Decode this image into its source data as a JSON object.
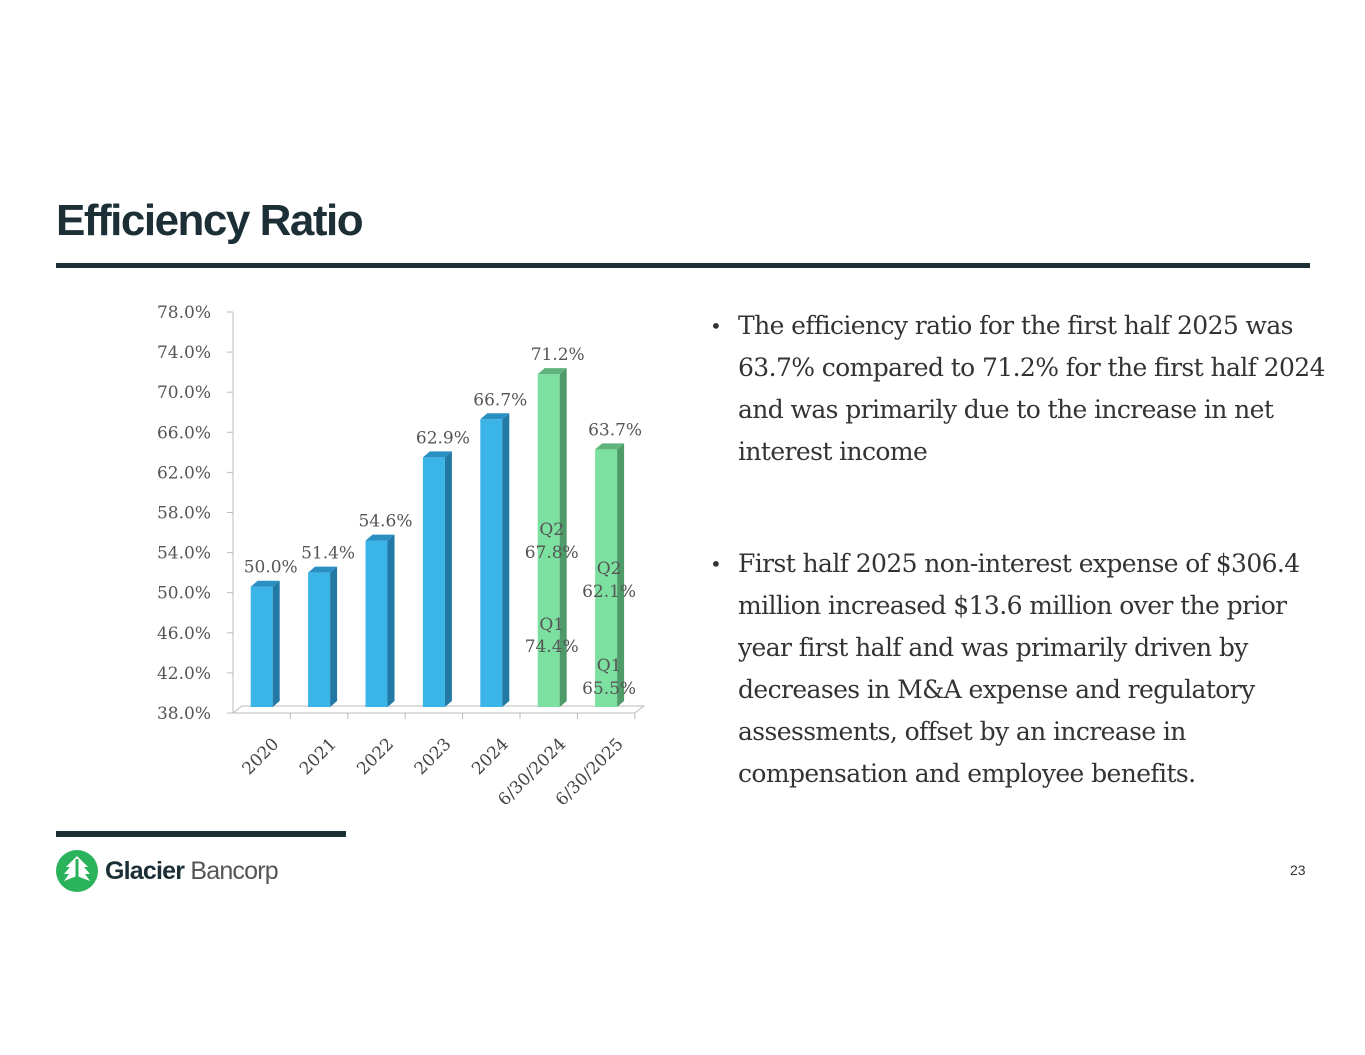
{
  "slide": {
    "title": "Efficiency Ratio",
    "page_number": "23",
    "bullets": [
      "The efficiency ratio for the first half 2025 was 63.7% compared to 71.2% for the first half 2024 and was primarily due to the increase in net interest income",
      "First half 2025 non-interest expense of $306.4 million increased $13.6 million over the prior year first half and was primarily driven by decreases in M&A expense and regulatory assessments, offset by an increase in compensation and employee benefits."
    ],
    "logo": {
      "brand_bold": "Glacier",
      "brand_light": "Bancorp",
      "icon": "tree-icon",
      "color": "#2bb35c"
    }
  },
  "chart_data": {
    "type": "bar",
    "title": "",
    "xlabel": "",
    "ylabel": "",
    "ylim": [
      38,
      78
    ],
    "yticks": [
      "38.0%",
      "42.0%",
      "46.0%",
      "50.0%",
      "54.0%",
      "58.0%",
      "62.0%",
      "66.0%",
      "70.0%",
      "74.0%",
      "78.0%"
    ],
    "grid": false,
    "style": "3d-column",
    "categories": [
      "2020",
      "2021",
      "2022",
      "2023",
      "2024",
      "6/30/2024",
      "6/30/2025"
    ],
    "values": [
      50.0,
      51.4,
      54.6,
      62.9,
      66.7,
      71.2,
      63.7
    ],
    "data_labels": [
      "50.0%",
      "51.4%",
      "54.6%",
      "62.9%",
      "66.7%",
      "71.2%",
      "63.7%"
    ],
    "colors": [
      "#3bb5e8",
      "#3bb5e8",
      "#3bb5e8",
      "#3bb5e8",
      "#3bb5e8",
      "#7ce0a0",
      "#7ce0a0"
    ],
    "annotations": [
      {
        "category": "6/30/2024",
        "lines": [
          {
            "quarter": "Q2",
            "value": "67.8%"
          },
          {
            "quarter": "Q1",
            "value": "74.4%"
          }
        ]
      },
      {
        "category": "6/30/2025",
        "lines": [
          {
            "quarter": "Q2",
            "value": "62.1%"
          },
          {
            "quarter": "Q1",
            "value": "65.5%"
          }
        ]
      }
    ]
  }
}
